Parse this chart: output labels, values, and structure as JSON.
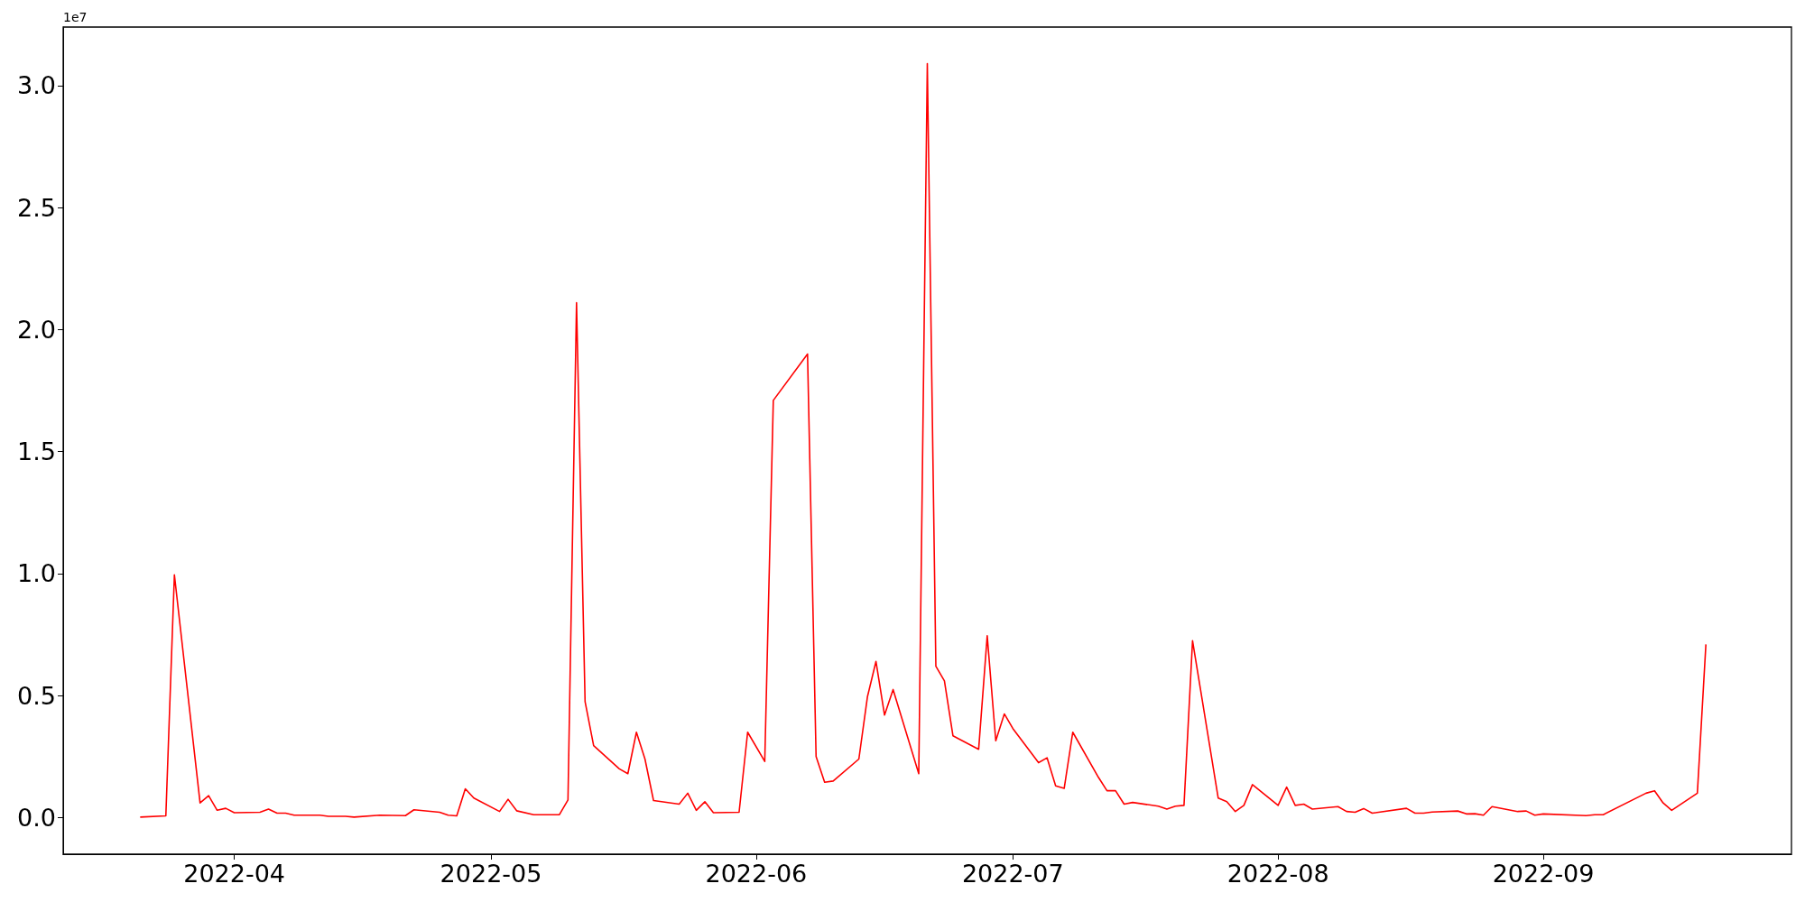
{
  "chart_data": {
    "type": "line",
    "x": [
      "2022-03-21",
      "2022-03-24",
      "2022-03-25",
      "2022-03-28",
      "2022-03-29",
      "2022-03-30",
      "2022-03-31",
      "2022-04-01",
      "2022-04-04",
      "2022-04-05",
      "2022-04-06",
      "2022-04-07",
      "2022-04-08",
      "2022-04-11",
      "2022-04-12",
      "2022-04-14",
      "2022-04-15",
      "2022-04-18",
      "2022-04-21",
      "2022-04-22",
      "2022-04-25",
      "2022-04-26",
      "2022-04-27",
      "2022-04-28",
      "2022-04-29",
      "2022-05-02",
      "2022-05-03",
      "2022-05-04",
      "2022-05-06",
      "2022-05-09",
      "2022-05-10",
      "2022-05-11",
      "2022-05-12",
      "2022-05-13",
      "2022-05-16",
      "2022-05-17",
      "2022-05-18",
      "2022-05-19",
      "2022-05-20",
      "2022-05-23",
      "2022-05-24",
      "2022-05-25",
      "2022-05-26",
      "2022-05-27",
      "2022-05-30",
      "2022-05-31",
      "2022-06-02",
      "2022-06-03",
      "2022-06-07",
      "2022-06-08",
      "2022-06-09",
      "2022-06-10",
      "2022-06-13",
      "2022-06-14",
      "2022-06-15",
      "2022-06-16",
      "2022-06-17",
      "2022-06-20",
      "2022-06-21",
      "2022-06-22",
      "2022-06-23",
      "2022-06-24",
      "2022-06-27",
      "2022-06-28",
      "2022-06-29",
      "2022-06-30",
      "2022-07-01",
      "2022-07-04",
      "2022-07-05",
      "2022-07-06",
      "2022-07-07",
      "2022-07-08",
      "2022-07-11",
      "2022-07-12",
      "2022-07-13",
      "2022-07-14",
      "2022-07-15",
      "2022-07-18",
      "2022-07-19",
      "2022-07-20",
      "2022-07-21",
      "2022-07-22",
      "2022-07-25",
      "2022-07-26",
      "2022-07-27",
      "2022-07-28",
      "2022-07-29",
      "2022-08-01",
      "2022-08-02",
      "2022-08-03",
      "2022-08-04",
      "2022-08-05",
      "2022-08-08",
      "2022-08-09",
      "2022-08-10",
      "2022-08-11",
      "2022-08-12",
      "2022-08-16",
      "2022-08-17",
      "2022-08-18",
      "2022-08-19",
      "2022-08-22",
      "2022-08-23",
      "2022-08-24",
      "2022-08-25",
      "2022-08-26",
      "2022-08-29",
      "2022-08-30",
      "2022-08-31",
      "2022-09-01",
      "2022-09-06",
      "2022-09-07",
      "2022-09-08",
      "2022-09-13",
      "2022-09-14",
      "2022-09-15",
      "2022-09-16",
      "2022-09-19",
      "2022-09-20"
    ],
    "series": [
      {
        "color": "#ff0000",
        "values": [
          0.002,
          0.007,
          0.995,
          0.06,
          0.09,
          0.03,
          0.038,
          0.02,
          0.022,
          0.035,
          0.018,
          0.018,
          0.01,
          0.01,
          0.005,
          0.005,
          0.002,
          0.01,
          0.008,
          0.032,
          0.022,
          0.01,
          0.007,
          0.118,
          0.08,
          0.025,
          0.075,
          0.028,
          0.012,
          0.012,
          0.072,
          2.11,
          0.475,
          0.295,
          0.2,
          0.18,
          0.35,
          0.24,
          0.07,
          0.055,
          0.1,
          0.03,
          0.065,
          0.02,
          0.022,
          0.35,
          0.23,
          1.71,
          1.9,
          0.25,
          0.145,
          0.15,
          0.24,
          0.495,
          0.64,
          0.42,
          0.525,
          0.18,
          3.09,
          0.62,
          0.56,
          0.335,
          0.28,
          0.745,
          0.315,
          0.425,
          0.365,
          0.225,
          0.245,
          0.13,
          0.12,
          0.35,
          0.165,
          0.11,
          0.11,
          0.055,
          0.062,
          0.047,
          0.035,
          0.047,
          0.05,
          0.725,
          0.08,
          0.065,
          0.025,
          0.05,
          0.135,
          0.05,
          0.125,
          0.05,
          0.055,
          0.035,
          0.045,
          0.025,
          0.022,
          0.037,
          0.018,
          0.038,
          0.018,
          0.018,
          0.023,
          0.027,
          0.015,
          0.016,
          0.01,
          0.045,
          0.025,
          0.027,
          0.01,
          0.015,
          0.008,
          0.012,
          0.012,
          0.1,
          0.11,
          0.06,
          0.03,
          0.1,
          0.71
        ]
      }
    ],
    "xlim": [
      "2022-03-12",
      "2022-09-30"
    ],
    "ylim": [
      -0.15,
      3.24
    ],
    "xticks": [
      {
        "value": "2022-04-01",
        "label": "2022-04"
      },
      {
        "value": "2022-05-01",
        "label": "2022-05"
      },
      {
        "value": "2022-06-01",
        "label": "2022-06"
      },
      {
        "value": "2022-07-01",
        "label": "2022-07"
      },
      {
        "value": "2022-08-01",
        "label": "2022-08"
      },
      {
        "value": "2022-09-01",
        "label": "2022-09"
      }
    ],
    "yticks": [
      {
        "value": 0,
        "label": "0.0"
      },
      0.5,
      {
        "value": 1,
        "label": "1.0"
      },
      1.5,
      {
        "value": 2,
        "label": "2.0"
      },
      2.5,
      {
        "value": 3,
        "label": "3.0"
      }
    ],
    "annotations": [
      "1e7"
    ],
    "marker": "none",
    "line_style": "solid",
    "grid": false
  }
}
